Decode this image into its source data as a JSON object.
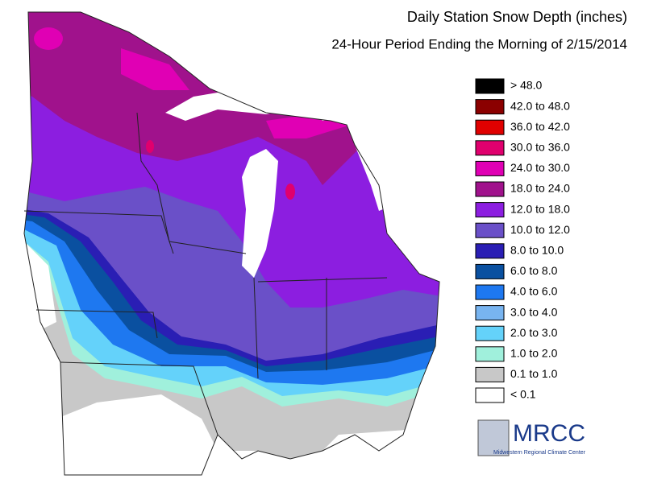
{
  "title": "Daily Station Snow Depth (inches)",
  "subtitle": "24-Hour Period Ending the Morning of 2/15/2014",
  "legend": [
    {
      "label": "> 48.0",
      "color": "#000000"
    },
    {
      "label": "42.0 to 48.0",
      "color": "#8b0000"
    },
    {
      "label": "36.0 to 42.0",
      "color": "#e00000"
    },
    {
      "label": "30.0 to 36.0",
      "color": "#e0006e"
    },
    {
      "label": "24.0 to 30.0",
      "color": "#e000b4"
    },
    {
      "label": "18.0 to 24.0",
      "color": "#a0128c"
    },
    {
      "label": "12.0 to 18.0",
      "color": "#8c1ee0"
    },
    {
      "label": "10.0 to 12.0",
      "color": "#6a50c8"
    },
    {
      "label": "8.0 to 10.0",
      "color": "#2a1eb4"
    },
    {
      "label": "6.0 to 8.0",
      "color": "#0a50a0"
    },
    {
      "label": "4.0 to 6.0",
      "color": "#1e78f0"
    },
    {
      "label": "3.0 to 4.0",
      "color": "#78b4f0"
    },
    {
      "label": "2.0 to 3.0",
      "color": "#64d2fa"
    },
    {
      "label": "1.0 to 2.0",
      "color": "#a0f0dc"
    },
    {
      "label": "0.1 to 1.0",
      "color": "#c8c8c8"
    },
    {
      "label": "< 0.1",
      "color": "#ffffff"
    }
  ],
  "logo": {
    "name": "MRCC",
    "org": "Midwestern Regional Climate Center"
  }
}
